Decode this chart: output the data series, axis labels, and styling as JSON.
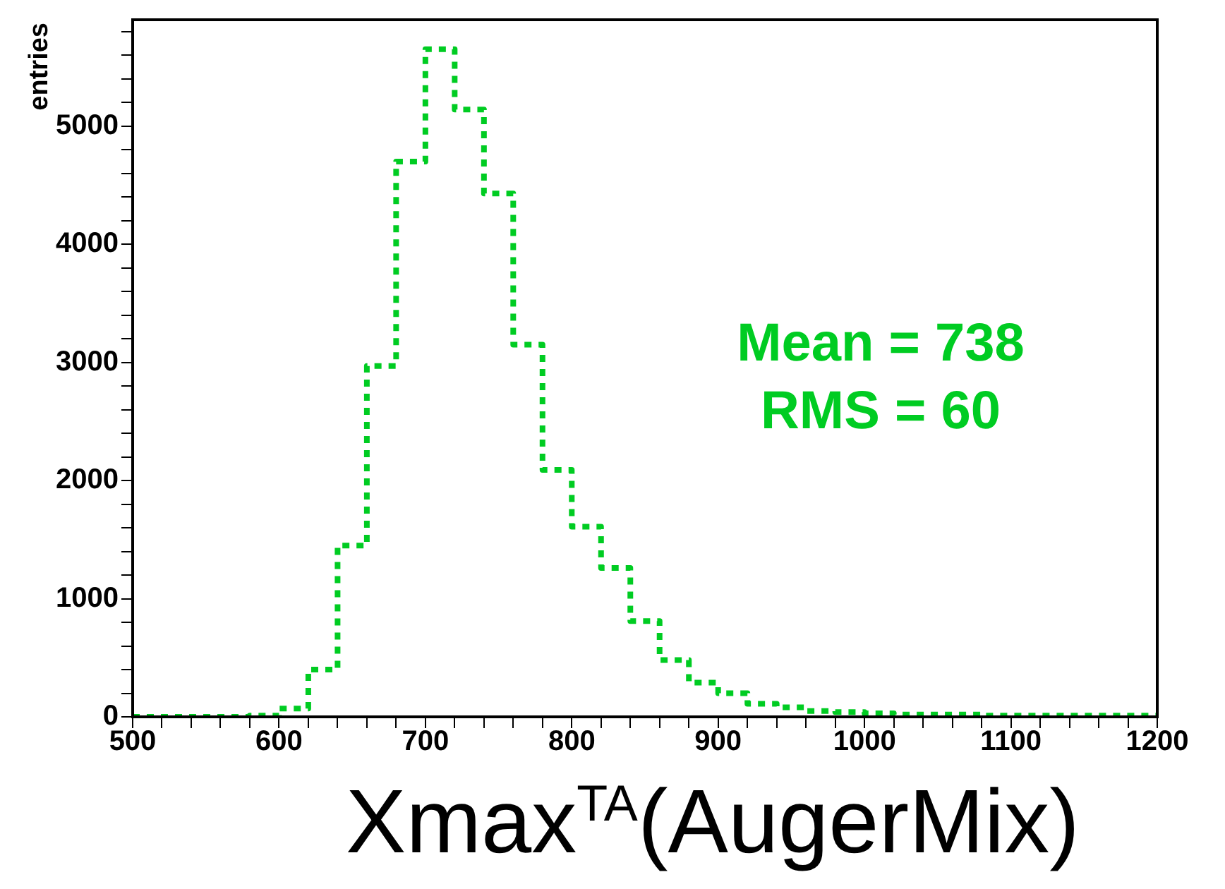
{
  "chart_data": {
    "type": "histogram",
    "xlabel": "Xmax$^{TA}$(AugerMix)",
    "ylabel": "entries",
    "color": "#00cc22",
    "line_style": "dotted",
    "legend": false,
    "grid": false,
    "bins": [
      500,
      520,
      540,
      560,
      580,
      600,
      620,
      640,
      660,
      680,
      700,
      720,
      740,
      760,
      780,
      800,
      820,
      840,
      860,
      880,
      900,
      920,
      940,
      960,
      980,
      1000,
      1020,
      1040,
      1060,
      1080,
      1100,
      1120,
      1140,
      1160,
      1180,
      1200
    ],
    "values": [
      0,
      0,
      0,
      0,
      10,
      70,
      400,
      1450,
      2970,
      4700,
      5650,
      5140,
      4430,
      3150,
      2090,
      1610,
      1260,
      810,
      480,
      290,
      200,
      110,
      80,
      50,
      40,
      30,
      20,
      20,
      20,
      10,
      10,
      10,
      10,
      10,
      10
    ],
    "xlim": [
      500,
      1200
    ],
    "ylim": [
      0,
      5900
    ],
    "xticks": [
      500,
      {
        "value": 520,
        "label": null
      },
      {
        "value": 540,
        "label": null
      },
      {
        "value": 560,
        "label": null
      },
      {
        "value": 580,
        "label": null
      },
      600,
      {
        "value": 620,
        "label": null
      },
      {
        "value": 640,
        "label": null
      },
      {
        "value": 660,
        "label": null
      },
      {
        "value": 680,
        "label": null
      },
      700,
      {
        "value": 720,
        "label": null
      },
      {
        "value": 740,
        "label": null
      },
      {
        "value": 760,
        "label": null
      },
      {
        "value": 780,
        "label": null
      },
      800,
      {
        "value": 820,
        "label": null
      },
      {
        "value": 840,
        "label": null
      },
      {
        "value": 860,
        "label": null
      },
      {
        "value": 880,
        "label": null
      },
      900,
      {
        "value": 920,
        "label": null
      },
      {
        "value": 940,
        "label": null
      },
      {
        "value": 960,
        "label": null
      },
      {
        "value": 980,
        "label": null
      },
      1000,
      {
        "value": 1020,
        "label": null
      },
      {
        "value": 1040,
        "label": null
      },
      {
        "value": 1060,
        "label": null
      },
      {
        "value": 1080,
        "label": null
      },
      1100,
      {
        "value": 1120,
        "label": null
      },
      {
        "value": 1140,
        "label": null
      },
      {
        "value": 1160,
        "label": null
      },
      {
        "value": 1180,
        "label": null
      },
      1200
    ],
    "yticks": [
      0,
      {
        "value": 200,
        "label": null
      },
      {
        "value": 400,
        "label": null
      },
      {
        "value": 600,
        "label": null
      },
      {
        "value": 800,
        "label": null
      },
      1000,
      {
        "value": 1200,
        "label": null
      },
      {
        "value": 1400,
        "label": null
      },
      {
        "value": 1600,
        "label": null
      },
      {
        "value": 1800,
        "label": null
      },
      2000,
      {
        "value": 2200,
        "label": null
      },
      {
        "value": 2400,
        "label": null
      },
      {
        "value": 2600,
        "label": null
      },
      {
        "value": 2800,
        "label": null
      },
      3000,
      {
        "value": 3200,
        "label": null
      },
      {
        "value": 3400,
        "label": null
      },
      {
        "value": 3600,
        "label": null
      },
      {
        "value": 3800,
        "label": null
      },
      4000,
      {
        "value": 4200,
        "label": null
      },
      {
        "value": 4400,
        "label": null
      },
      {
        "value": 4600,
        "label": null
      },
      {
        "value": 4800,
        "label": null
      },
      5000,
      {
        "value": 5200,
        "label": null
      },
      {
        "value": 5400,
        "label": null
      },
      {
        "value": 5600,
        "label": null
      },
      {
        "value": 5800,
        "label": null
      }
    ],
    "annotations": [
      "Mean = 738",
      "RMS = 60"
    ]
  }
}
